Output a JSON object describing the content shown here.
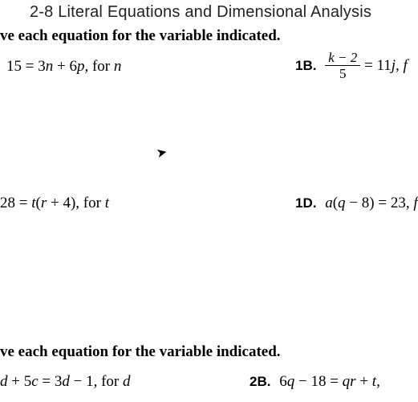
{
  "title": "2-8 Literal Equations and Dimensional Analysis",
  "instruction1": "ve each equation for the variable indicated.",
  "instruction2": "ve each equation for the variable indicated.",
  "problems": {
    "p1a": {
      "eq": "15 = 3n + 6p",
      "for": ", for ",
      "var": "n"
    },
    "p1b": {
      "label": "1B.",
      "frac_num": "k − 2",
      "frac_den": "5",
      "rhs": " = 11j, f"
    },
    "p1c": {
      "eq": "28 = t(r + 4)",
      "for": ", for ",
      "var": "t"
    },
    "p1d": {
      "label": "1D.",
      "eq": "a(q − 8) = 23, f"
    },
    "p2a": {
      "eq": "d + 5c = 3d − 1",
      "for": ", for ",
      "var": "d"
    },
    "p2b": {
      "label": "2B.",
      "eq": "6q − 18 = qr + t,"
    }
  },
  "style": {
    "background": "#ffffff",
    "text_color": "#000000",
    "title_fontsize": 20,
    "body_fontsize": 19
  }
}
